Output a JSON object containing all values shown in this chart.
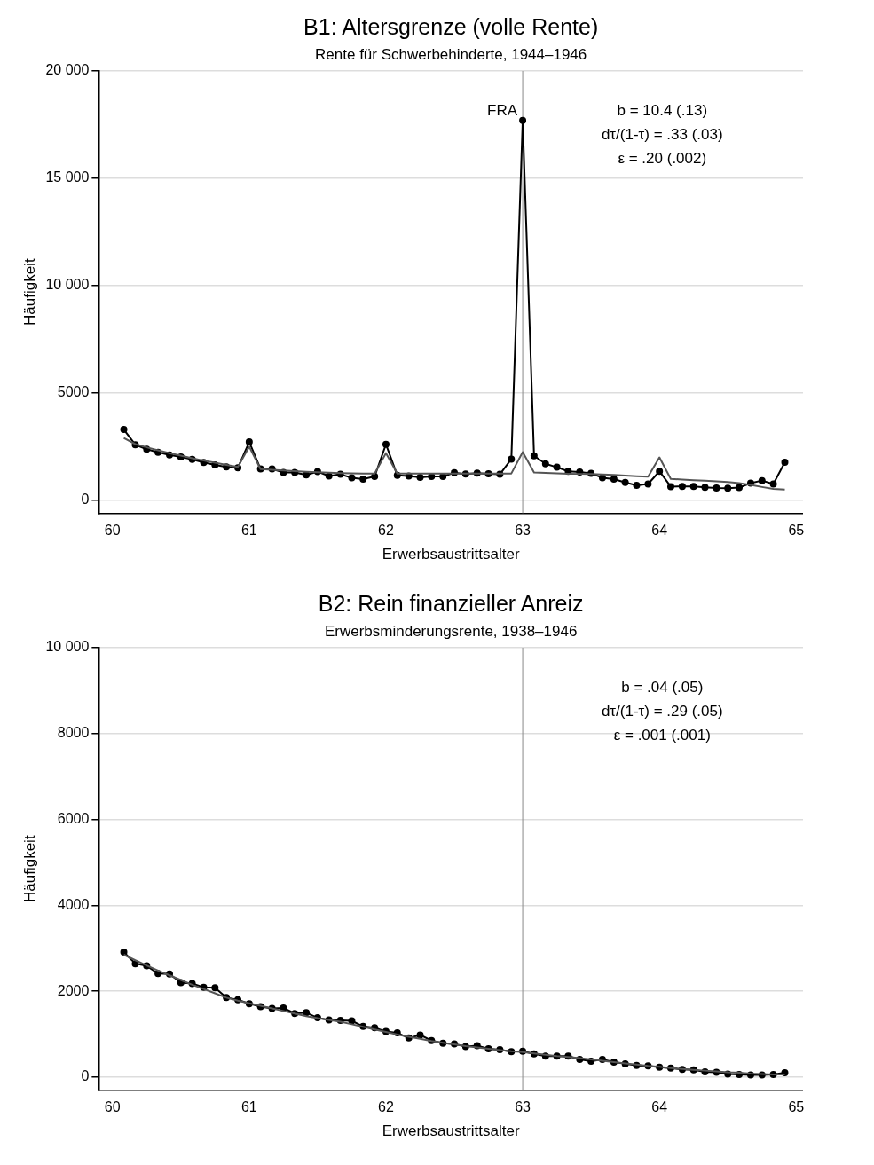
{
  "chart_data": [
    {
      "type": "line",
      "title": "B1: Altersgrenze (volle Rente)",
      "subtitle": "Rente für Schwerbehinderte, 1944–1946",
      "xlabel": "Erwerbsaustrittsalter",
      "ylabel": "Häufigkeit",
      "x": [
        60.083,
        60.167,
        60.25,
        60.333,
        60.417,
        60.5,
        60.583,
        60.667,
        60.75,
        60.833,
        60.917,
        61,
        61.083,
        61.167,
        61.25,
        61.333,
        61.417,
        61.5,
        61.583,
        61.667,
        61.75,
        61.833,
        61.917,
        62,
        62.083,
        62.167,
        62.25,
        62.333,
        62.417,
        62.5,
        62.583,
        62.667,
        62.75,
        62.833,
        62.917,
        63,
        63.083,
        63.167,
        63.25,
        63.333,
        63.417,
        63.5,
        63.583,
        63.667,
        63.75,
        63.833,
        63.917,
        64,
        64.083,
        64.167,
        64.25,
        64.333,
        64.417,
        64.5,
        64.583,
        64.667,
        64.75,
        64.833,
        64.917
      ],
      "series": [
        {
          "color": "#555555",
          "marker": "none",
          "values": [
            2900,
            2620,
            2470,
            2330,
            2200,
            2080,
            1960,
            1850,
            1750,
            1650,
            1560,
            2500,
            1450,
            1420,
            1390,
            1360,
            1330,
            1310,
            1290,
            1270,
            1260,
            1250,
            1250,
            2200,
            1250,
            1250,
            1250,
            1250,
            1250,
            1250,
            1250,
            1250,
            1250,
            1250,
            1250,
            2250,
            1300,
            1280,
            1260,
            1240,
            1230,
            1220,
            1200,
            1180,
            1150,
            1120,
            1100,
            2000,
            1000,
            970,
            940,
            910,
            880,
            850,
            800,
            720,
            620,
            530,
            500
          ]
        },
        {
          "color": "#000000",
          "marker": "circle",
          "values": [
            3300,
            2590,
            2380,
            2240,
            2110,
            2020,
            1910,
            1760,
            1650,
            1560,
            1510,
            2720,
            1460,
            1460,
            1300,
            1300,
            1180,
            1340,
            1130,
            1210,
            1050,
            990,
            1110,
            2610,
            1160,
            1130,
            1070,
            1110,
            1110,
            1290,
            1220,
            1270,
            1240,
            1210,
            1920,
            17700,
            2070,
            1700,
            1540,
            1350,
            1320,
            1260,
            1050,
            990,
            830,
            700,
            760,
            1350,
            640,
            650,
            650,
            600,
            570,
            560,
            590,
            800,
            920,
            760,
            1770
          ]
        }
      ],
      "xlim": [
        59.9,
        65.05
      ],
      "xticks": [
        60,
        61,
        62,
        63,
        64,
        65
      ],
      "ylim": [
        -600,
        20000
      ],
      "yticks": [
        0,
        5000,
        {
          "value": 10000,
          "label": "10 000"
        },
        {
          "value": 15000,
          "label": "15 000"
        },
        {
          "value": 20000,
          "label": "20 000"
        }
      ],
      "grid": "y",
      "legend": false,
      "line_style": "solid",
      "ref_lines": [
        {
          "axis": "x",
          "value": 63,
          "label": "FRA",
          "color": "#888888"
        }
      ],
      "annotations": [
        "b = 10.4 (.13)",
        "dτ/(1-τ) = .33 (.03)",
        "ε = .20 (.002)"
      ]
    },
    {
      "type": "line",
      "title": "B2: Rein finanzieller Anreiz",
      "subtitle": "Erwerbsminderungsrente, 1938–1946",
      "xlabel": "Erwerbsaustrittsalter",
      "ylabel": "Häufigkeit",
      "x": [
        60.083,
        60.167,
        60.25,
        60.333,
        60.417,
        60.5,
        60.583,
        60.667,
        60.75,
        60.833,
        60.917,
        61,
        61.083,
        61.167,
        61.25,
        61.333,
        61.417,
        61.5,
        61.583,
        61.667,
        61.75,
        61.833,
        61.917,
        62,
        62.083,
        62.167,
        62.25,
        62.333,
        62.417,
        62.5,
        62.583,
        62.667,
        62.75,
        62.833,
        62.917,
        63,
        63.083,
        63.167,
        63.25,
        63.333,
        63.417,
        63.5,
        63.583,
        63.667,
        63.75,
        63.833,
        63.917,
        64,
        64.083,
        64.167,
        64.25,
        64.333,
        64.417,
        64.5,
        64.583,
        64.667,
        64.75,
        64.833,
        64.917
      ],
      "series": [
        {
          "color": "#555555",
          "marker": "none",
          "values": [
            2850,
            2720,
            2600,
            2480,
            2370,
            2260,
            2150,
            2050,
            1950,
            1850,
            1780,
            1720,
            1660,
            1600,
            1540,
            1480,
            1420,
            1370,
            1330,
            1290,
            1230,
            1170,
            1110,
            1050,
            990,
            940,
            890,
            840,
            800,
            760,
            720,
            690,
            660,
            630,
            600,
            580,
            550,
            520,
            490,
            470,
            440,
            410,
            380,
            350,
            320,
            290,
            260,
            240,
            210,
            190,
            170,
            150,
            130,
            110,
            100,
            80,
            70,
            60,
            60
          ]
        },
        {
          "color": "#000000",
          "marker": "circle",
          "values": [
            2910,
            2640,
            2590,
            2410,
            2400,
            2200,
            2180,
            2090,
            2080,
            1850,
            1800,
            1710,
            1640,
            1600,
            1610,
            1480,
            1500,
            1380,
            1330,
            1320,
            1310,
            1180,
            1150,
            1060,
            1030,
            910,
            980,
            850,
            790,
            770,
            710,
            730,
            660,
            640,
            590,
            600,
            540,
            490,
            490,
            490,
            410,
            370,
            410,
            350,
            310,
            270,
            260,
            230,
            210,
            180,
            170,
            120,
            110,
            70,
            60,
            50,
            50,
            60,
            100
          ]
        }
      ],
      "xlim": [
        59.9,
        65.05
      ],
      "xticks": [
        60,
        61,
        62,
        63,
        64,
        65
      ],
      "ylim": [
        -300,
        10000
      ],
      "yticks": [
        0,
        2000,
        4000,
        6000,
        8000,
        {
          "value": 10000,
          "label": "10 000"
        }
      ],
      "grid": "y",
      "legend": false,
      "line_style": "solid",
      "ref_lines": [
        {
          "axis": "x",
          "value": 63,
          "color": "#888888"
        }
      ],
      "annotations": [
        "b = .04 (.05)",
        "dτ/(1-τ) = .29 (.05)",
        "ε = .001 (.001)"
      ]
    }
  ]
}
